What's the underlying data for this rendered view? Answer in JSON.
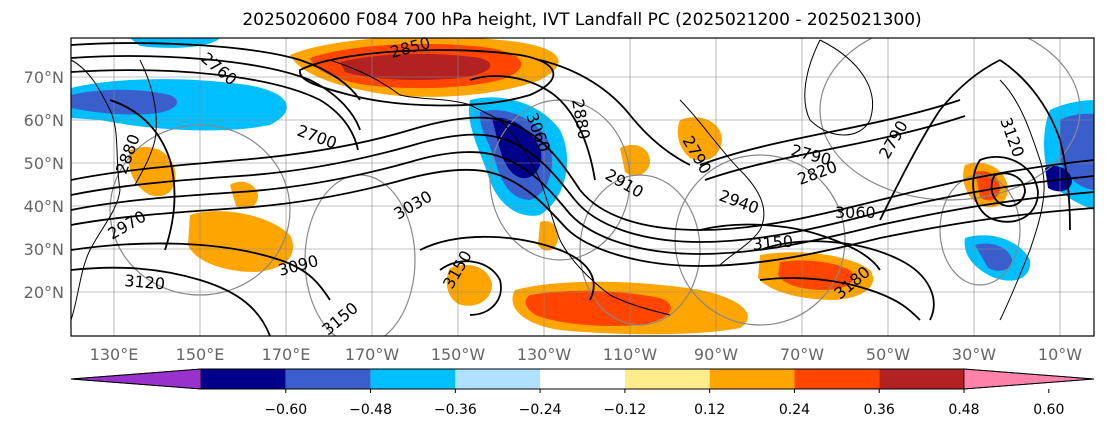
{
  "title": "2025020600 F084 700 hPa height, IVT Landfall PC (2025021200 - 2025021300)",
  "map": {
    "lat_ticks": [
      "70°N",
      "60°N",
      "50°N",
      "40°N",
      "30°N",
      "20°N"
    ],
    "lon_ticks": [
      "130°E",
      "150°E",
      "170°E",
      "170°W",
      "150°W",
      "130°W",
      "110°W",
      "90°W",
      "70°W",
      "50°W",
      "30°W",
      "10°W"
    ],
    "contour_labels": [
      "2760",
      "2850",
      "2880",
      "2790",
      "2700",
      "2790",
      "2820",
      "2910",
      "2940",
      "2970",
      "3030",
      "3060",
      "3090",
      "3120",
      "3150",
      "3180",
      "3150",
      "3060",
      "3120",
      "2790",
      "3150",
      "2880"
    ]
  },
  "colorbar": {
    "tick_labels": [
      "−0.60",
      "−0.48",
      "−0.36",
      "−0.24",
      "−0.12",
      "0.12",
      "0.24",
      "0.36",
      "0.48",
      "0.60"
    ],
    "colors": [
      "#9932cc",
      "#00008b",
      "#3a5fcd",
      "#00bfff",
      "#b0e2ff",
      "#ffffff",
      "#ffec8b",
      "#ffa500",
      "#ff4500",
      "#b22222",
      "#ff82ab"
    ]
  }
}
